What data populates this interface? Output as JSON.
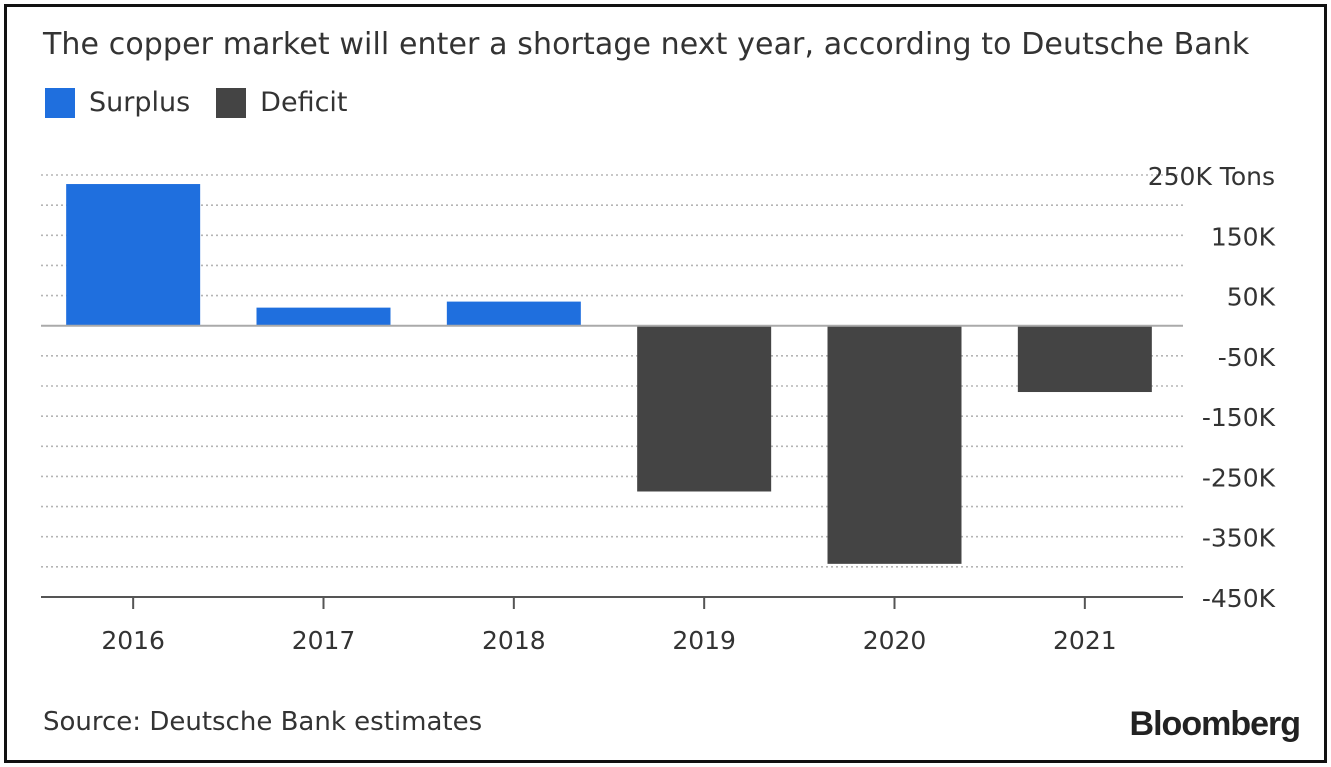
{
  "title": "The copper market will enter a shortage next year, according to Deutsche Bank",
  "legend": [
    {
      "label": "Surplus",
      "color": "#1f6fde"
    },
    {
      "label": "Deficit",
      "color": "#444444"
    }
  ],
  "source": "Source: Deutsche Bank estimates",
  "brand": "Bloomberg",
  "chart_data": {
    "type": "bar",
    "categories": [
      "2016",
      "2017",
      "2018",
      "2019",
      "2020",
      "2021"
    ],
    "values": [
      235000,
      30000,
      40000,
      -275000,
      -395000,
      -110000
    ],
    "series": [
      {
        "name": "Surplus/Deficit",
        "values": [
          235000,
          30000,
          40000,
          -275000,
          -395000,
          -110000
        ]
      }
    ],
    "positive_color": "#1f6fde",
    "negative_color": "#444444",
    "ylim": [
      -450000,
      250000
    ],
    "yticks": [
      250000,
      150000,
      50000,
      -50000,
      -150000,
      -250000,
      -350000,
      -450000
    ],
    "ytick_labels": [
      "250K Tons",
      "150K",
      "50K",
      "-50K",
      "-150K",
      "-250K",
      "-350K",
      "-450K"
    ],
    "grid": true,
    "legend_position": "top-left"
  }
}
